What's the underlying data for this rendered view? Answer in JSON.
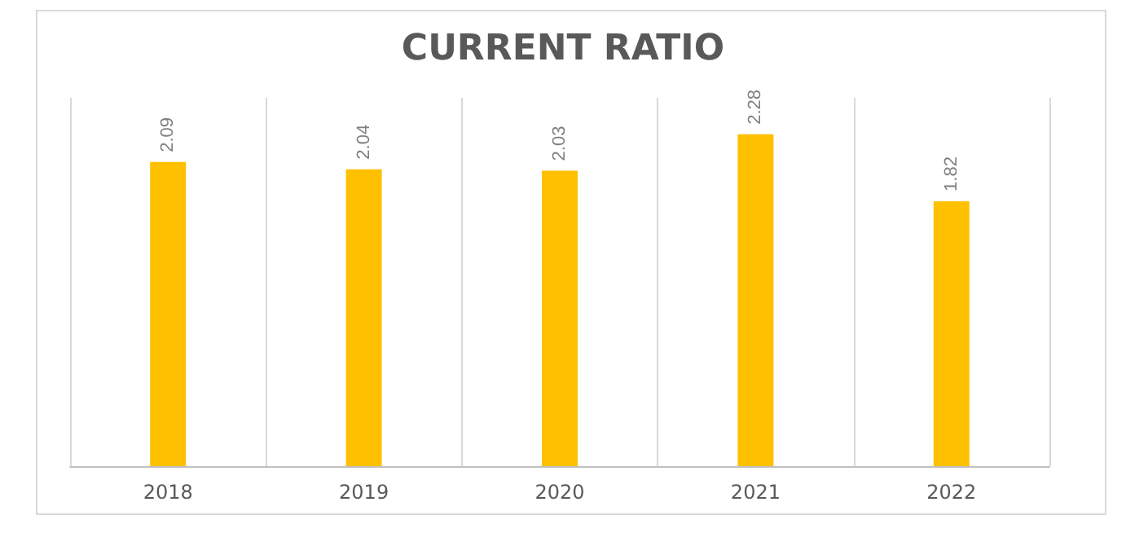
{
  "chart_data": {
    "type": "bar",
    "title": "CURRENT RATIO",
    "categories": [
      "2018",
      "2019",
      "2020",
      "2021",
      "2022"
    ],
    "values": [
      2.09,
      2.04,
      2.03,
      2.28,
      1.82
    ],
    "color": "#ffc000",
    "data_labels": true,
    "grid": "x"
  }
}
